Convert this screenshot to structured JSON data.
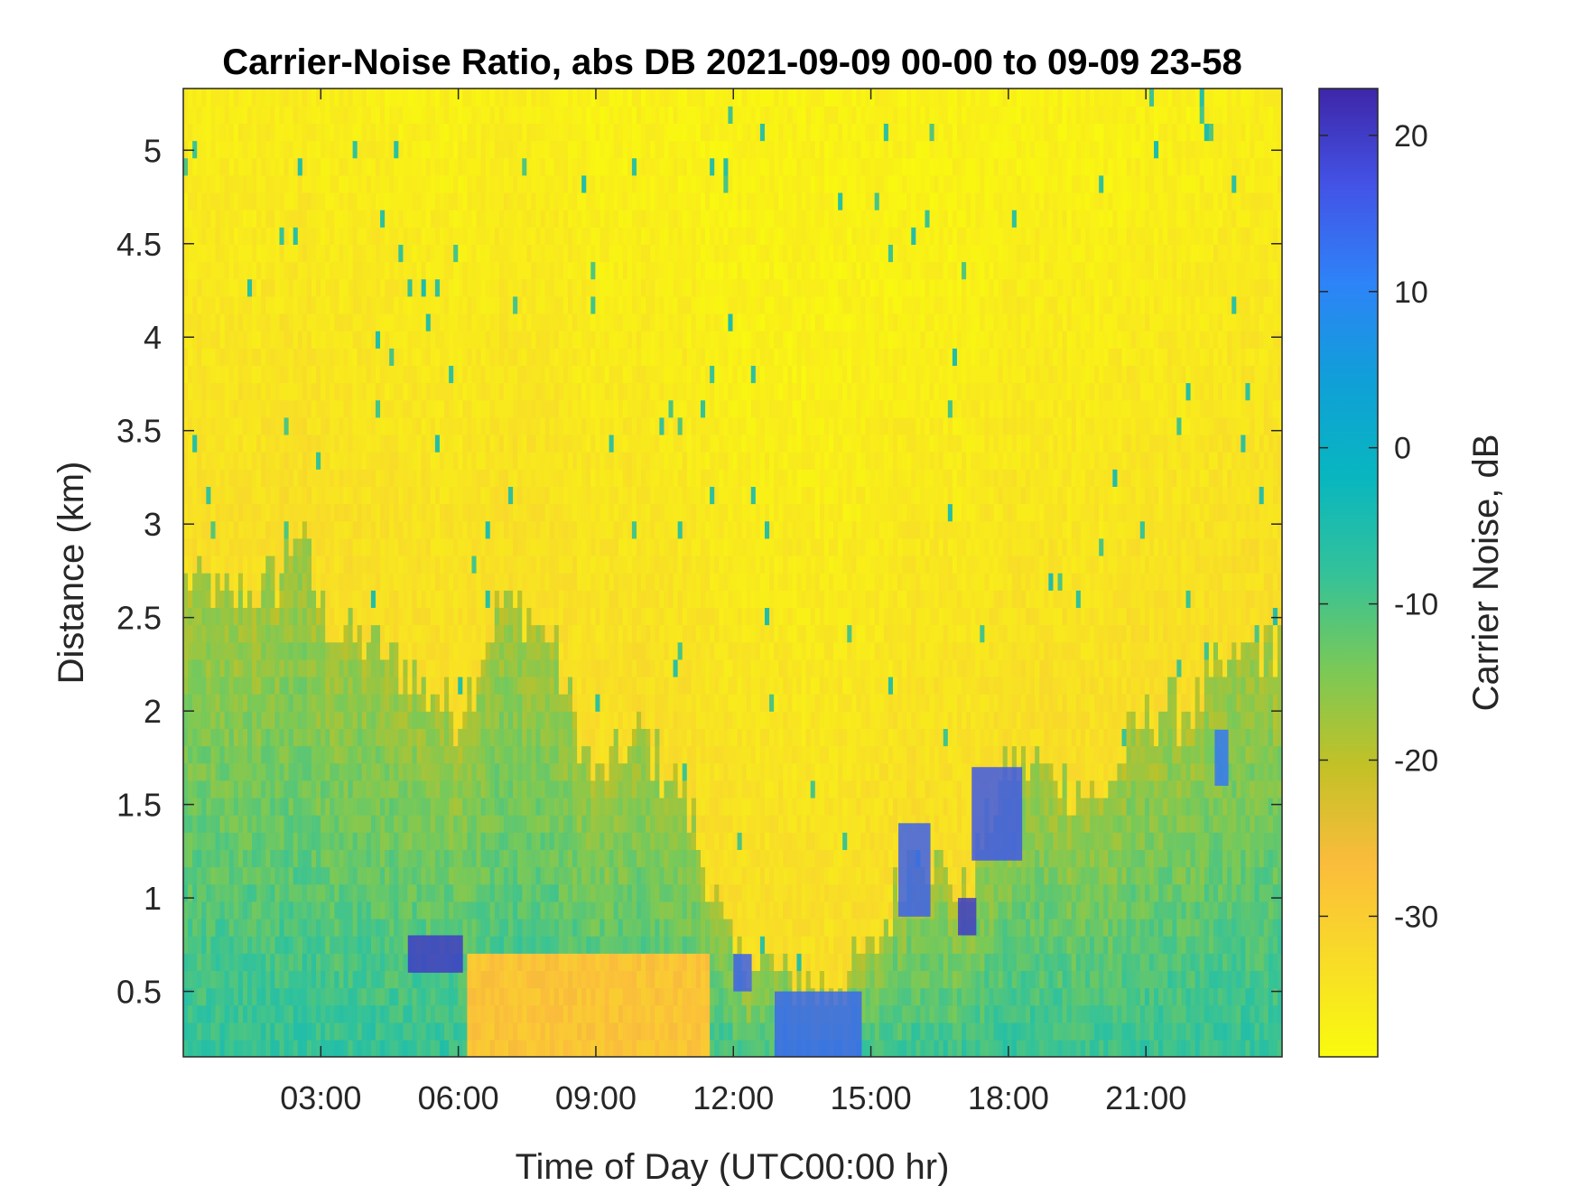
{
  "chart_data": {
    "type": "heatmap",
    "title": "Carrier-Noise Ratio, abs DB 2021-09-09 00-00 to 09-09 23-58",
    "xlabel": "Time of Day (UTC00:00 hr)",
    "ylabel": "Distance (km)",
    "xlim_hours": [
      0,
      23.97
    ],
    "ylim_km": [
      0.15,
      5.33
    ],
    "x_ticks": [
      {
        "hour": 3,
        "label": "03:00"
      },
      {
        "hour": 6,
        "label": "06:00"
      },
      {
        "hour": 9,
        "label": "09:00"
      },
      {
        "hour": 12,
        "label": "12:00"
      },
      {
        "hour": 15,
        "label": "15:00"
      },
      {
        "hour": 18,
        "label": "18:00"
      },
      {
        "hour": 21,
        "label": "21:00"
      }
    ],
    "y_ticks": [
      {
        "km": 0.5,
        "label": "0.5"
      },
      {
        "km": 1,
        "label": "1"
      },
      {
        "km": 1.5,
        "label": "1.5"
      },
      {
        "km": 2,
        "label": "2"
      },
      {
        "km": 2.5,
        "label": "2.5"
      },
      {
        "km": 3,
        "label": "3"
      },
      {
        "km": 3.5,
        "label": "3.5"
      },
      {
        "km": 4,
        "label": "4"
      },
      {
        "km": 4.5,
        "label": "4.5"
      },
      {
        "km": 5,
        "label": "5"
      }
    ],
    "colorbar": {
      "label": "Carrier Noise, dB",
      "range_db": [
        -39,
        23
      ],
      "ticks": [
        {
          "value": 20,
          "label": "20"
        },
        {
          "value": 10,
          "label": "10"
        },
        {
          "value": 0,
          "label": "0"
        },
        {
          "value": -10,
          "label": "-10"
        },
        {
          "value": -20,
          "label": "-20"
        },
        {
          "value": -30,
          "label": "-30"
        }
      ],
      "colormap": [
        "#3e26a8",
        "#4353e6",
        "#2e83f8",
        "#109fd8",
        "#08b6c0",
        "#33c29a",
        "#7ac957",
        "#c3c126",
        "#fbbc3c",
        "#f8dc28",
        "#f9fb0e"
      ]
    },
    "boundary_layer_top_km": [
      {
        "hour": 0,
        "km": 2.7
      },
      {
        "hour": 1,
        "km": 2.6
      },
      {
        "hour": 2,
        "km": 2.7
      },
      {
        "hour": 2.5,
        "km": 3.0
      },
      {
        "hour": 3,
        "km": 2.5
      },
      {
        "hour": 4,
        "km": 2.4
      },
      {
        "hour": 5,
        "km": 2.2
      },
      {
        "hour": 6,
        "km": 2.0
      },
      {
        "hour": 7,
        "km": 2.6
      },
      {
        "hour": 8,
        "km": 2.4
      },
      {
        "hour": 9,
        "km": 1.6
      },
      {
        "hour": 10,
        "km": 1.9
      },
      {
        "hour": 11,
        "km": 1.5
      },
      {
        "hour": 12,
        "km": 0.7
      },
      {
        "hour": 13,
        "km": 0.6
      },
      {
        "hour": 14,
        "km": 0.5
      },
      {
        "hour": 15,
        "km": 0.7
      },
      {
        "hour": 16,
        "km": 1.3
      },
      {
        "hour": 17,
        "km": 1.0
      },
      {
        "hour": 18,
        "km": 1.7
      },
      {
        "hour": 19,
        "km": 1.7
      },
      {
        "hour": 20,
        "km": 1.5
      },
      {
        "hour": 21,
        "km": 2.0
      },
      {
        "hour": 22,
        "km": 2.0
      },
      {
        "hour": 23,
        "km": 2.3
      },
      {
        "hour": 24,
        "km": 2.4
      }
    ],
    "strong_return_patches": [
      {
        "h0": 4.9,
        "h1": 6.1,
        "km0": 0.6,
        "km1": 0.8,
        "db": 20
      },
      {
        "h0": 12.0,
        "h1": 12.4,
        "km0": 0.5,
        "km1": 0.7,
        "db": 15
      },
      {
        "h0": 12.9,
        "h1": 14.8,
        "km0": 0.15,
        "km1": 0.5,
        "db": 14
      },
      {
        "h0": 15.6,
        "h1": 16.3,
        "km0": 0.9,
        "km1": 1.4,
        "db": 15
      },
      {
        "h0": 16.9,
        "h1": 17.3,
        "km0": 0.8,
        "km1": 1.0,
        "db": 20
      },
      {
        "h0": 17.2,
        "h1": 18.3,
        "km0": 1.2,
        "km1": 1.7,
        "db": 16
      },
      {
        "h0": 22.5,
        "h1": 22.8,
        "km0": 1.6,
        "km1": 1.9,
        "db": 12
      }
    ]
  }
}
